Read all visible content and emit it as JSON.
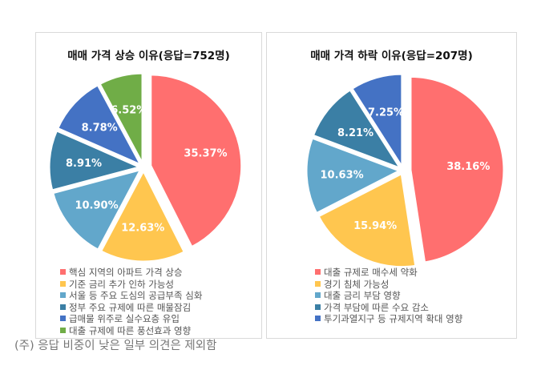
{
  "chart_data": [
    {
      "type": "pie",
      "title": "매매 가격 상승 이유(응답=752명)",
      "labels": [
        "핵심 지역의 아파트 가격 상승",
        "기준 금리 추가 인하 가능성",
        "서울 등 주요 도심의 공급부족 심화",
        "정부 주요 규제에 따른 매물잠김",
        "급매물 위주로 실수요층 유입",
        "대출 규제에 따른 풍선효과 영향"
      ],
      "values": [
        35.37,
        12.63,
        10.9,
        8.91,
        8.78,
        6.52
      ],
      "data_labels": [
        "35.37%",
        "12.63%",
        "10.90%",
        "8.91%",
        "8.78%",
        "6.52%"
      ],
      "colors": [
        "#FF6F6F",
        "#FFC64F",
        "#62A7CB",
        "#3B7FA5",
        "#4472C4",
        "#70AD47"
      ],
      "legend": "bottom"
    },
    {
      "type": "pie",
      "title": "매매 가격 하락 이유(응답=207명)",
      "labels": [
        "대출 규제로 매수세 약화",
        "경기 침체 가능성",
        "대출 금리 부담 영향",
        "가격 부담에 따른 수요 감소",
        "투기과열지구 등 규제지역 확대 영향"
      ],
      "values": [
        38.16,
        15.94,
        10.63,
        8.21,
        7.25
      ],
      "data_labels": [
        "38.16%",
        "15.94%",
        "10.63%",
        "8.21%",
        "7.25%"
      ],
      "colors": [
        "#FF6F6F",
        "#FFC64F",
        "#62A7CB",
        "#3B7FA5",
        "#4472C4"
      ],
      "legend": "bottom"
    }
  ],
  "footnote": "(주) 응답 비중이 낮은 일부 의견은 제외함"
}
